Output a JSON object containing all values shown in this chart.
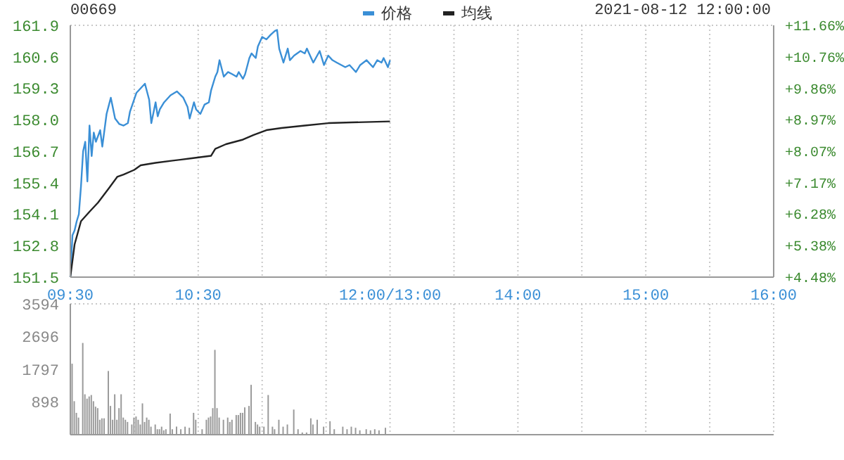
{
  "chart_data": [
    {
      "type": "line",
      "title": "00669",
      "subtitle": "2021-08-12 12:00:00",
      "legend": "top",
      "grid": true,
      "marker": "none",
      "line_style": "solid",
      "categories": [
        "09:30",
        null,
        null,
        null,
        null,
        null,
        null,
        null,
        null,
        null,
        null,
        null,
        null,
        null,
        null,
        null,
        null,
        null,
        null,
        null,
        null,
        null,
        null,
        null,
        null,
        null,
        null,
        null,
        null,
        null,
        null,
        null,
        null,
        null,
        null,
        null,
        null,
        null,
        null,
        null,
        null,
        null,
        null,
        null,
        null,
        null,
        null,
        null,
        null,
        null,
        null,
        null,
        null,
        null,
        null,
        null,
        null,
        null,
        null,
        null,
        "10:30",
        null,
        null,
        null,
        null,
        null,
        null,
        null,
        null,
        null,
        null,
        null,
        null,
        null,
        null,
        null,
        null,
        null,
        null,
        null,
        null,
        null,
        null,
        null,
        null,
        null,
        null,
        null,
        null,
        null,
        null,
        null,
        null,
        null,
        null,
        null,
        null,
        null,
        null,
        null,
        null,
        null,
        null,
        null,
        null,
        null,
        null,
        null,
        null,
        null,
        null,
        null,
        null,
        null,
        null,
        null,
        null,
        null,
        null,
        null,
        null,
        null,
        null,
        null,
        null,
        null,
        null,
        null,
        null,
        null,
        null,
        null,
        null,
        null,
        null,
        null,
        null,
        null,
        null,
        null,
        null,
        null,
        null,
        null,
        null,
        null,
        null,
        null,
        null,
        null,
        "12:00/13:00",
        null,
        null,
        null,
        null,
        null,
        null,
        null,
        null,
        null,
        null,
        null,
        null,
        null,
        null,
        null,
        null,
        null,
        null,
        null,
        null,
        null,
        null,
        null,
        null,
        null,
        null,
        null,
        null,
        null,
        null,
        null,
        null,
        null,
        null,
        null,
        null,
        null,
        null,
        null,
        null,
        null,
        null,
        null,
        null,
        null,
        null,
        null,
        null,
        null,
        null,
        null,
        null,
        null,
        null,
        null,
        null,
        null,
        null,
        null,
        "14:00",
        null,
        null,
        null,
        null,
        null,
        null,
        null,
        null,
        null,
        null,
        null,
        null,
        null,
        null,
        null,
        null,
        null,
        null,
        null,
        null,
        null,
        null,
        null,
        null,
        null,
        null,
        null,
        null,
        null,
        null,
        null,
        null,
        null,
        null,
        null,
        null,
        null,
        null,
        null,
        null,
        null,
        null,
        null,
        null,
        null,
        null,
        null,
        null,
        null,
        null,
        null,
        null,
        null,
        null,
        null,
        null,
        null,
        null,
        null,
        "15:00",
        null,
        null,
        null,
        null,
        null,
        null,
        null,
        null,
        null,
        null,
        null,
        null,
        null,
        null,
        null,
        null,
        null,
        null,
        null,
        null,
        null,
        null,
        null,
        null,
        null,
        null,
        null,
        null,
        null,
        null,
        null,
        null,
        null,
        null,
        null,
        null,
        null,
        null,
        null,
        null,
        null,
        null,
        null,
        null,
        null,
        null,
        null,
        null,
        null,
        null,
        null,
        null,
        null,
        null,
        null,
        null,
        null,
        null,
        null,
        "16:00"
      ],
      "ylim": [
        151.5,
        161.9
      ],
      "yticks": [
        151.5,
        152.8,
        154.1,
        155.4,
        156.7,
        {
          "value": 158,
          "label": "158.0"
        },
        159.3,
        160.6,
        161.9
      ],
      "y2lim": [
        4.48,
        11.66
      ],
      "y2ticks": [
        {
          "value": 4.48,
          "label": "+4.48%"
        },
        {
          "value": 5.38,
          "label": "+5.38%"
        },
        {
          "value": 6.28,
          "label": "+6.28%"
        },
        {
          "value": 7.17,
          "label": "+7.17%"
        },
        {
          "value": 8.07,
          "label": "+8.07%"
        },
        {
          "value": 8.97,
          "label": "+8.97%"
        },
        {
          "value": 9.86,
          "label": "+9.86%"
        },
        {
          "value": 10.76,
          "label": "+10.76%"
        },
        {
          "value": 11.66,
          "label": "+11.66%"
        }
      ],
      "series": [
        {
          "name": "价格",
          "color": "#3a8fd6",
          "values": [
            151.5,
            153.23,
            153.43,
            153.81,
            154.1,
            155.26,
            156.7,
            157.09,
            155.45,
            157.76,
            156.5,
            157.47,
            157.09,
            null,
            157.57,
            156.89,
            null,
            158.24,
            null,
            158.91,
            null,
            158.05,
            null,
            157.82,
            null,
            157.76,
            null,
            157.86,
            158.34,
            null,
            null,
            159.11,
            null,
            159.3,
            null,
            159.49,
            null,
            158.82,
            157.86,
            null,
            158.72,
            158.14,
            158.43,
            null,
            158.72,
            null,
            null,
            159.01,
            null,
            null,
            159.17,
            null,
            null,
            158.91,
            null,
            158.53,
            158.05,
            null,
            158.72,
            158.43,
            null,
            158.24,
            null,
            158.63,
            null,
            158.72,
            159.2,
            null,
            159.78,
            159.97,
            160.46,
            null,
            159.78,
            null,
            159.97,
            null,
            159.88,
            null,
            159.78,
            159.97,
            null,
            159.69,
            159.88,
            null,
            160.55,
            160.74,
            null,
            160.55,
            161.03,
            null,
            161.42,
            null,
            161.32,
            null,
            161.51,
            null,
            161.67,
            161.71,
            160.94,
            160.65,
            160.36,
            null,
            160.94,
            160.46,
            null,
            160.65,
            null,
            null,
            160.84,
            null,
            160.74,
            160.94,
            null,
            160.55,
            160.36,
            null,
            null,
            160.84,
            null,
            160.26,
            null,
            160.65,
            null,
            160.46,
            null,
            160.36,
            null,
            null,
            null,
            160.17,
            null,
            160.26,
            null,
            null,
            159.97,
            null,
            160.26,
            null,
            null,
            160.46,
            null,
            null,
            160.17,
            null,
            160.46,
            null,
            160.36,
            160.55,
            null,
            160.17,
            160.46,
            null,
            null,
            null,
            null,
            null,
            null,
            null,
            null,
            null,
            null,
            null,
            null,
            null,
            null,
            null,
            null,
            null,
            null,
            null,
            null,
            null,
            null,
            null,
            null,
            null,
            null,
            null,
            null,
            null,
            null,
            null,
            null,
            null,
            null,
            null,
            null,
            null,
            null,
            null,
            null,
            null,
            null,
            null,
            null,
            null,
            null,
            null,
            null,
            null,
            null,
            null,
            null,
            null,
            null,
            null,
            null,
            null,
            null,
            null,
            null,
            null,
            null,
            null,
            null,
            null,
            null,
            null,
            null,
            null,
            null,
            null,
            null,
            null,
            null,
            null,
            null,
            null,
            null,
            null,
            null,
            null,
            null,
            null,
            null,
            null,
            null,
            null,
            null,
            null,
            null,
            null,
            null,
            null,
            null,
            null,
            null,
            null,
            null,
            null,
            null,
            null,
            null,
            null,
            null,
            null,
            null,
            null,
            null,
            null,
            null,
            null,
            null,
            null,
            null,
            null,
            null,
            null,
            null,
            null,
            null,
            null,
            null,
            null,
            null,
            null,
            null,
            null,
            null,
            null,
            null,
            null,
            null,
            null,
            null,
            null,
            null,
            null,
            null,
            null,
            null,
            null,
            null,
            null,
            null,
            null,
            null,
            null,
            null,
            null,
            null,
            null,
            null,
            null,
            null,
            null,
            null,
            null,
            null,
            null,
            null,
            null,
            null,
            null,
            null,
            null,
            null,
            null,
            null,
            null,
            null,
            null,
            null,
            null,
            null,
            null,
            null,
            null,
            null,
            null,
            null
          ]
        },
        {
          "name": "均线",
          "color": "#222222",
          "values": [
            151.5,
            null,
            152.85,
            null,
            null,
            153.81,
            null,
            null,
            null,
            154.2,
            null,
            null,
            null,
            154.58,
            null,
            null,
            null,
            null,
            155.16,
            null,
            null,
            null,
            155.64,
            null,
            null,
            155.74,
            null,
            null,
            null,
            null,
            155.93,
            null,
            null,
            156.12,
            null,
            null,
            null,
            null,
            null,
            null,
            156.22,
            null,
            null,
            null,
            null,
            null,
            null,
            null,
            156.31,
            null,
            null,
            null,
            null,
            null,
            null,
            null,
            null,
            156.41,
            null,
            null,
            null,
            null,
            null,
            null,
            null,
            null,
            156.51,
            null,
            156.8,
            null,
            null,
            null,
            null,
            156.99,
            null,
            null,
            null,
            null,
            null,
            null,
            null,
            157.18,
            null,
            null,
            null,
            null,
            157.37,
            null,
            null,
            null,
            null,
            null,
            157.57,
            null,
            null,
            null,
            null,
            null,
            null,
            157.66,
            null,
            null,
            null,
            null,
            null,
            null,
            null,
            null,
            null,
            null,
            157.76,
            null,
            null,
            null,
            null,
            null,
            null,
            null,
            null,
            null,
            null,
            157.86,
            null,
            null,
            null,
            null,
            null,
            null,
            null,
            null,
            null,
            null,
            157.89,
            null,
            null,
            null,
            null,
            null,
            null,
            null,
            null,
            null,
            null,
            null,
            null,
            null,
            null,
            null,
            null,
            null,
            157.93,
            null,
            null,
            null,
            null,
            null,
            null,
            null,
            null,
            null,
            null,
            null,
            null,
            null,
            null,
            null,
            null,
            null,
            null,
            null,
            null,
            null,
            null,
            null,
            null,
            null,
            null,
            null,
            null,
            null,
            null,
            null,
            null,
            null,
            null,
            null,
            null,
            null,
            null,
            null,
            null,
            null,
            null,
            null,
            null,
            null,
            null,
            null,
            null,
            null,
            null,
            null,
            null,
            null,
            null,
            null,
            null,
            null,
            null,
            null,
            null,
            null,
            null,
            null,
            null,
            null,
            null,
            null,
            null,
            null,
            null,
            null,
            null,
            null,
            null,
            null,
            null,
            null,
            null,
            null,
            null,
            null,
            null,
            null,
            null,
            null,
            null,
            null,
            null,
            null,
            null,
            null,
            null,
            null,
            null,
            null,
            null,
            null,
            null,
            null,
            null,
            null,
            null,
            null,
            null,
            null,
            null,
            null,
            null,
            null,
            null,
            null,
            null,
            null,
            null,
            null,
            null,
            null,
            null,
            null,
            null,
            null,
            null,
            null,
            null,
            null,
            null,
            null,
            null,
            null,
            null,
            null,
            null,
            null,
            null,
            null,
            null,
            null,
            null,
            null,
            null,
            null,
            null,
            null,
            null,
            null,
            null,
            null,
            null,
            null,
            null,
            null,
            null,
            null,
            null,
            null,
            null,
            null,
            null,
            null,
            null,
            null,
            null,
            null,
            null,
            null,
            null,
            null,
            null,
            null,
            null,
            null,
            null,
            null,
            null,
            null,
            null,
            null,
            null,
            null,
            null
          ]
        }
      ]
    },
    {
      "type": "bar",
      "grid": true,
      "tick_labels": "y",
      "categories": [
        null,
        null,
        null,
        null,
        null,
        null,
        null,
        null,
        null,
        null,
        null,
        null,
        null,
        null,
        null,
        null,
        null,
        null,
        null,
        null,
        null,
        null,
        null,
        null,
        null,
        null,
        null,
        null,
        null,
        null,
        null,
        null,
        null,
        null,
        null,
        null,
        null,
        null,
        null,
        null,
        null,
        null,
        null,
        null,
        null,
        null,
        null,
        null,
        null,
        null,
        null,
        null,
        null,
        null,
        null,
        null,
        null,
        null,
        null,
        null,
        null,
        null,
        null,
        null,
        null,
        null,
        null,
        null,
        null,
        null,
        null,
        null,
        null,
        null,
        null,
        null,
        null,
        null,
        null,
        null,
        null,
        null,
        null,
        null,
        null,
        null,
        null,
        null,
        null,
        null,
        null,
        null,
        null,
        null,
        null,
        null,
        null,
        null,
        null,
        null,
        null,
        null,
        null,
        null,
        null,
        null,
        null,
        null,
        null,
        null,
        null,
        null,
        null,
        null,
        null,
        null,
        null,
        null,
        null,
        null,
        null,
        null,
        null,
        null,
        null,
        null,
        null,
        null,
        null,
        null,
        null,
        null,
        null,
        null,
        null,
        null,
        null,
        null,
        null,
        null,
        null,
        null,
        null,
        null,
        null,
        null,
        null,
        null,
        null,
        null,
        null,
        null,
        null,
        null,
        null,
        null,
        null,
        null,
        null,
        null,
        null,
        null,
        null,
        null,
        null,
        null,
        null,
        null,
        null,
        null,
        null,
        null,
        null,
        null,
        null,
        null,
        null,
        null,
        null,
        null,
        null,
        null,
        null,
        null,
        null,
        null,
        null,
        null,
        null,
        null,
        null,
        null,
        null,
        null,
        null,
        null,
        null,
        null,
        null,
        null,
        null,
        null,
        null,
        null,
        null,
        null,
        null,
        null,
        null,
        null,
        null,
        null,
        null,
        null,
        null,
        null,
        null,
        null,
        null,
        null,
        null,
        null,
        null,
        null,
        null,
        null,
        null,
        null,
        null,
        null,
        null,
        null,
        null,
        null,
        null,
        null,
        null,
        null,
        null,
        null,
        null,
        null,
        null,
        null,
        null,
        null,
        null,
        null,
        null,
        null,
        null,
        null,
        null,
        null,
        null,
        null,
        null,
        null,
        null,
        null,
        null,
        null,
        null,
        null,
        null,
        null,
        null,
        null,
        null,
        null,
        null,
        null,
        null,
        null,
        null,
        null,
        null,
        null,
        null,
        null,
        null,
        null,
        null,
        null,
        null,
        null,
        null,
        null,
        null,
        null,
        null,
        null,
        null,
        null,
        null,
        null,
        null,
        null,
        null,
        null,
        null,
        null,
        null,
        null,
        null,
        null,
        null,
        null,
        null,
        null,
        null,
        null,
        null,
        null,
        null,
        null,
        null,
        null,
        null,
        null,
        null,
        null,
        null,
        null,
        null,
        null,
        null,
        null,
        null,
        null,
        null
      ],
      "ylim": [
        0,
        3594
      ],
      "yticks": [
        898,
        1797,
        2696,
        3594
      ],
      "series": [
        {
          "color": "#9a9a9a",
          "values": [
            null,
            1950,
            920,
            600,
            470,
            null,
            2520,
            1110,
            990,
            1050,
            1090,
            920,
            770,
            730,
            410,
            450,
            450,
            null,
            1750,
            790,
            410,
            1110,
            410,
            730,
            1110,
            470,
            410,
            350,
            null,
            280,
            470,
            500,
            410,
            280,
            860,
            350,
            470,
            410,
            220,
            null,
            280,
            150,
            150,
            220,
            120,
            150,
            null,
            580,
            150,
            null,
            220,
            null,
            150,
            null,
            220,
            null,
            190,
            null,
            600,
            410,
            null,
            null,
            150,
            null,
            410,
            470,
            500,
            730,
            2330,
            730,
            470,
            null,
            410,
            null,
            470,
            350,
            410,
            null,
            540,
            540,
            600,
            600,
            750,
            null,
            790,
            1370,
            null,
            350,
            280,
            220,
            null,
            220,
            null,
            1090,
            null,
            220,
            150,
            null,
            410,
            null,
            220,
            null,
            280,
            null,
            null,
            690,
            null,
            150,
            null,
            60,
            null,
            60,
            null,
            450,
            280,
            null,
            410,
            null,
            null,
            220,
            null,
            null,
            370,
            null,
            150,
            null,
            null,
            null,
            220,
            null,
            150,
            null,
            220,
            null,
            190,
            null,
            120,
            null,
            null,
            150,
            null,
            120,
            null,
            150,
            null,
            120,
            null,
            null,
            190,
            null,
            null,
            null,
            null,
            null,
            null,
            null,
            null,
            null,
            null,
            null,
            null,
            null,
            null,
            null,
            null,
            null,
            null,
            null,
            null,
            null,
            null,
            null,
            null,
            null,
            null,
            null,
            null,
            null,
            null,
            null,
            null,
            null,
            null,
            null,
            null,
            null,
            null,
            null,
            null,
            null,
            null,
            null,
            null,
            null,
            null,
            null,
            null,
            null,
            null,
            null,
            null,
            null,
            null,
            null,
            null,
            null,
            null,
            null,
            null,
            null,
            null,
            null,
            null,
            null,
            null,
            null,
            null,
            null,
            null,
            null,
            null,
            null,
            null,
            null,
            null,
            null,
            null,
            null,
            null,
            null,
            null,
            null,
            null,
            null,
            null,
            null,
            null,
            null,
            null,
            null,
            null,
            null,
            null,
            null,
            null,
            null,
            null,
            null,
            null,
            null,
            null,
            null,
            null,
            null,
            null,
            null,
            null,
            null,
            null,
            null,
            null,
            null,
            null,
            null,
            null,
            null,
            null,
            null,
            null,
            null,
            null,
            null,
            null,
            null,
            null,
            null,
            null,
            null,
            null,
            null,
            null,
            null,
            null,
            null,
            null,
            null,
            null,
            null,
            null,
            null,
            null,
            null,
            null,
            null,
            null,
            null,
            null,
            null,
            null,
            null,
            null,
            null,
            null,
            null,
            null,
            null,
            null,
            null,
            null,
            null,
            null,
            null,
            null,
            null,
            null,
            null,
            null,
            null,
            null,
            null,
            null,
            null,
            null,
            null,
            null,
            null,
            null,
            null,
            null,
            null,
            null
          ]
        }
      ]
    }
  ]
}
